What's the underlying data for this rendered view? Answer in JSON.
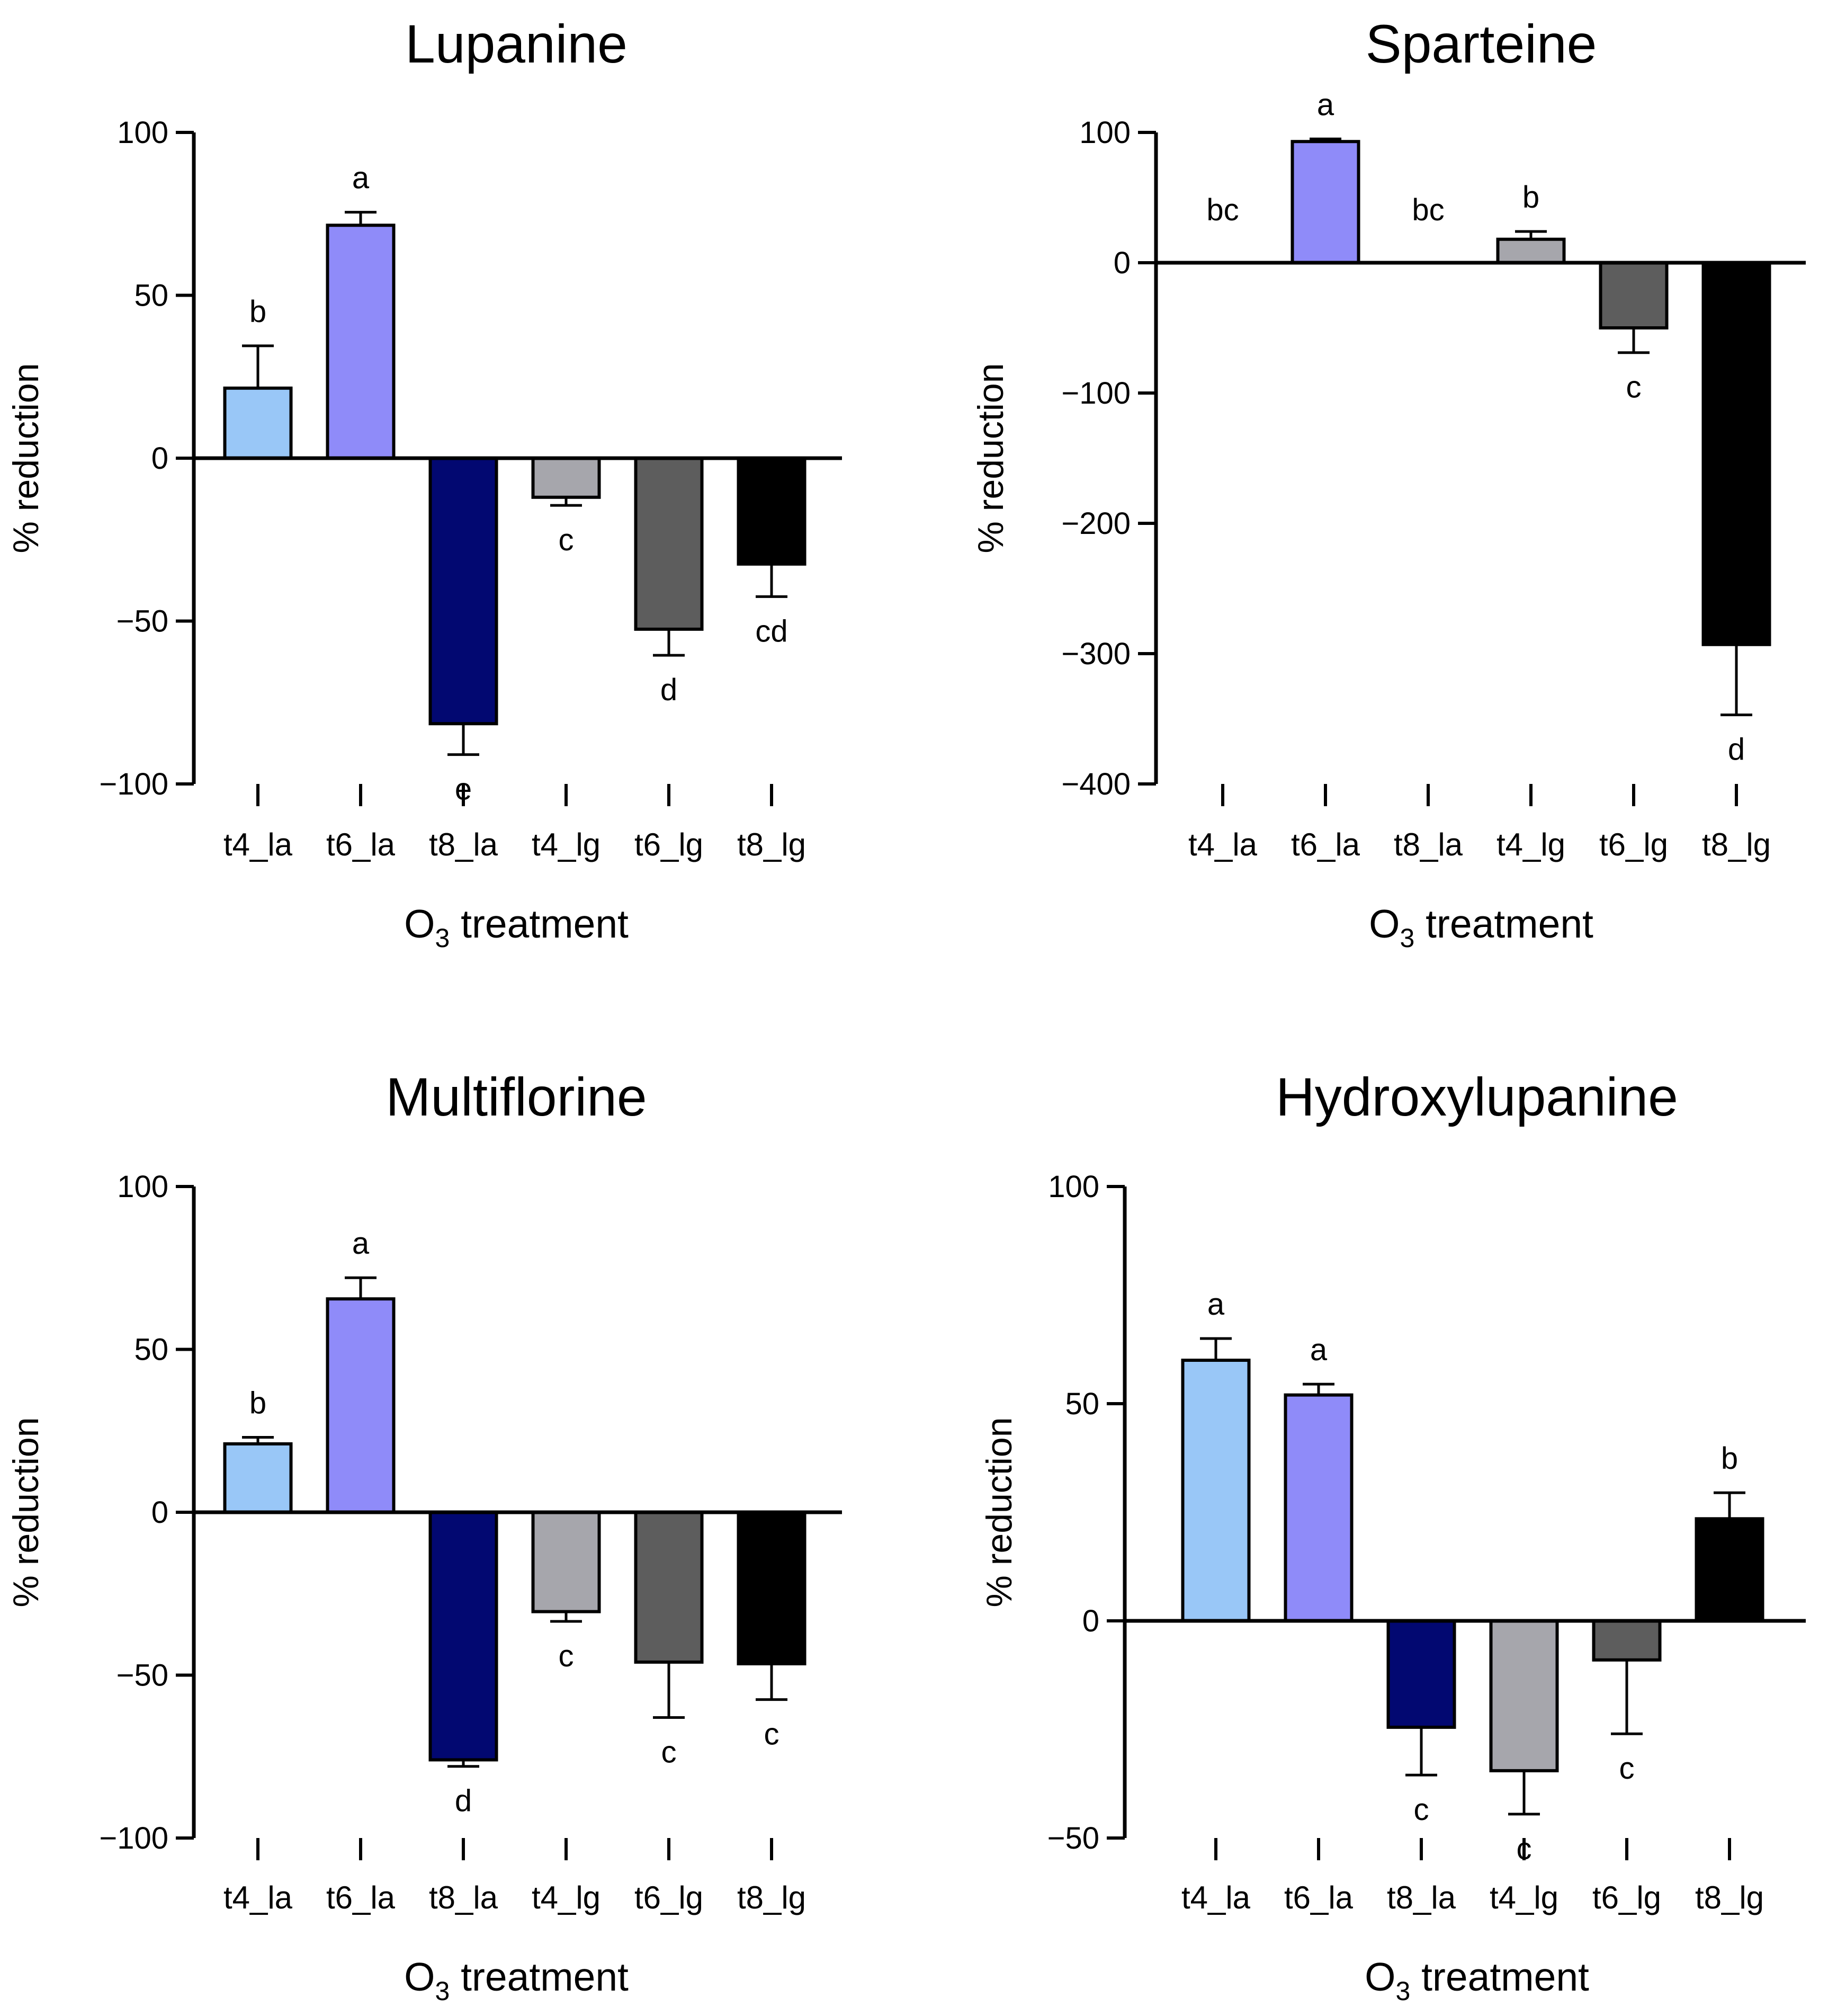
{
  "chart_data": [
    {
      "type": "bar",
      "title": "Lupanine",
      "xlabel": "O3 treatment",
      "xlabel_main": "O",
      "xlabel_sub": "3",
      "xlabel_rest": " treatment",
      "ylabel": "% reduction",
      "ylim": [
        -100,
        100
      ],
      "yticks": [
        100,
        50,
        0,
        -50,
        -100
      ],
      "ytick_labels": [
        "100",
        "50",
        "0",
        "−50",
        "−100"
      ],
      "categories": [
        "t4_la",
        "t6_la",
        "t8_la",
        "t4_lg",
        "t6_lg",
        "t8_lg"
      ],
      "values": [
        21.5,
        71.5,
        -81.5,
        -12,
        -52.5,
        -32.5
      ],
      "errors": [
        13,
        4,
        9.5,
        2.5,
        8,
        10
      ],
      "letters": [
        "b",
        "a",
        "e",
        "c",
        "d",
        "cd"
      ],
      "colors": [
        "#99c7f7",
        "#8f8bf9",
        "#020871",
        "#a6a6ac",
        "#5d5d5d",
        "#000000"
      ]
    },
    {
      "type": "bar",
      "title": "Sparteine",
      "xlabel": "O3 treatment",
      "xlabel_main": "O",
      "xlabel_sub": "3",
      "xlabel_rest": " treatment",
      "ylabel": "% reduction",
      "ylim": [
        -400,
        100
      ],
      "yticks": [
        100,
        0,
        -100,
        -200,
        -300,
        -400
      ],
      "ytick_labels": [
        "100",
        "0",
        "−100",
        "−200",
        "−300",
        "−400"
      ],
      "categories": [
        "t4_la",
        "t6_la",
        "t8_la",
        "t4_lg",
        "t6_lg",
        "t8_lg"
      ],
      "values": [
        0,
        93,
        0,
        18,
        -50,
        -293
      ],
      "errors": [
        0,
        2,
        0,
        6,
        19,
        54
      ],
      "letters": [
        "bc",
        "a",
        "bc",
        "b",
        "c",
        "d"
      ],
      "colors": [
        "#99c7f7",
        "#8f8bf9",
        "#020871",
        "#a6a6ac",
        "#5d5d5d",
        "#000000"
      ]
    },
    {
      "type": "bar",
      "title": "Multiflorine",
      "xlabel": "O3 treatment",
      "xlabel_main": "O",
      "xlabel_sub": "3",
      "xlabel_rest": " treatment",
      "ylabel": "% reduction",
      "ylim": [
        -100,
        100
      ],
      "yticks": [
        100,
        50,
        0,
        -50,
        -100
      ],
      "ytick_labels": [
        "100",
        "50",
        "0",
        "−50",
        "−100"
      ],
      "categories": [
        "t4_la",
        "t6_la",
        "t8_la",
        "t4_lg",
        "t6_lg",
        "t8_lg"
      ],
      "values": [
        21,
        65.5,
        -76,
        -30.5,
        -46,
        -46.5
      ],
      "errors": [
        2,
        6.5,
        2,
        3,
        17,
        11
      ],
      "letters": [
        "b",
        "a",
        "d",
        "c",
        "c",
        "c"
      ],
      "colors": [
        "#99c7f7",
        "#8f8bf9",
        "#020871",
        "#a6a6ac",
        "#5d5d5d",
        "#000000"
      ]
    },
    {
      "type": "bar",
      "title": "Hydroxylupanine",
      "xlabel": "O3 treatment",
      "xlabel_main": "O",
      "xlabel_sub": "3",
      "xlabel_rest": " treatment",
      "ylabel": "% reduction",
      "ylim": [
        -50,
        100
      ],
      "yticks": [
        100,
        50,
        0,
        -50
      ],
      "ytick_labels": [
        "100",
        "50",
        "0",
        "−50"
      ],
      "categories": [
        "t4_la",
        "t6_la",
        "t8_la",
        "t4_lg",
        "t6_lg",
        "t8_lg"
      ],
      "values": [
        60,
        52,
        -24.5,
        -34.5,
        -9,
        23.5
      ],
      "errors": [
        5,
        2.5,
        11,
        10,
        17,
        6
      ],
      "letters": [
        "a",
        "a",
        "c",
        "c",
        "c",
        "b"
      ],
      "colors": [
        "#99c7f7",
        "#8f8bf9",
        "#020871",
        "#a6a6ac",
        "#5d5d5d",
        "#000000"
      ]
    }
  ]
}
